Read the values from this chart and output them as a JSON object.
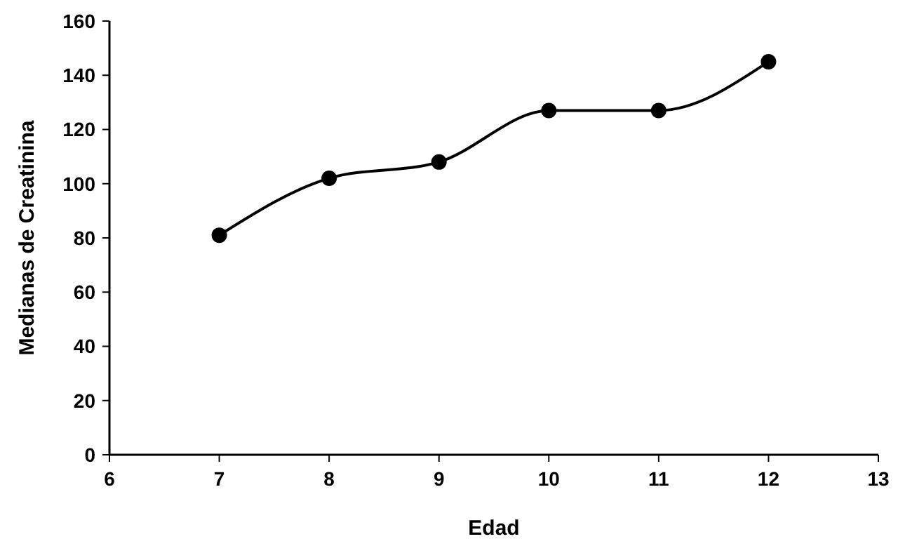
{
  "chart_data": {
    "type": "line",
    "xlabel": "Edad",
    "ylabel": "Medianas de Creatinina",
    "x": [
      7,
      8,
      9,
      10,
      11,
      12
    ],
    "series": [
      {
        "color": "#000000",
        "values": [
          81,
          102,
          108,
          127,
          127,
          145
        ]
      }
    ],
    "xlim": [
      6,
      13
    ],
    "xticks": [
      6,
      7,
      8,
      9,
      10,
      11,
      12,
      13
    ],
    "ylim": [
      0,
      160
    ],
    "yticks": [
      0,
      20,
      40,
      60,
      80,
      100,
      120,
      140,
      160
    ],
    "grid": false,
    "marker": "circle",
    "line_style": "solid"
  }
}
